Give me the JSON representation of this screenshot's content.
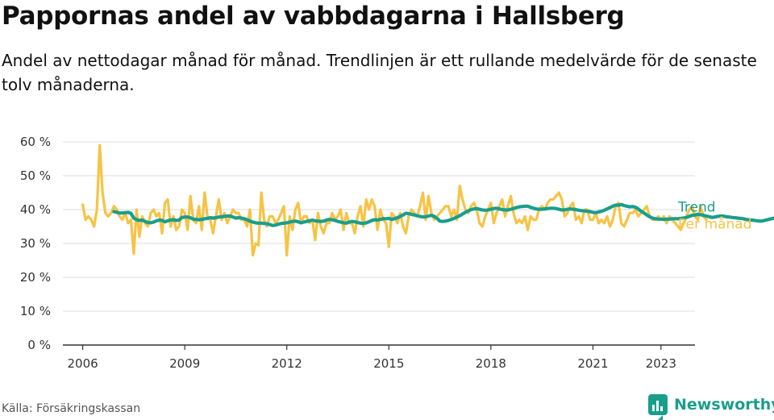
{
  "header": {
    "title": "Pappornas andel av vabbdagarna i Hallsberg",
    "subtitle": "Andel av nettodagar månad för månad. Trendlinjen är ett rullande medelvärde för de senaste tolv månaderna."
  },
  "footer": {
    "source": "Källa: Försäkringskassan",
    "brand": "Newsworthy",
    "brand_icon": "bar-chart-speech-bubble-icon"
  },
  "colors": {
    "monthly": "#f7c344",
    "trend": "#1a9e8c",
    "grid": "#dddddd",
    "axis": "#333333",
    "tick_text": "#333333"
  },
  "chart_data": {
    "type": "line",
    "title": "Pappornas andel av vabbdagarna i Hallsberg",
    "xlabel": "",
    "ylabel": "",
    "ylim": [
      0,
      60
    ],
    "yticks": [
      0,
      10,
      20,
      30,
      40,
      50,
      60
    ],
    "ytick_labels": [
      "0 %",
      "10 %",
      "20 %",
      "30 %",
      "40 %",
      "50 %",
      "60 %"
    ],
    "xlim": [
      "2005-06",
      "2024-01"
    ],
    "xticks": [
      "2006-01",
      "2009-01",
      "2012-01",
      "2015-01",
      "2018-01",
      "2021-01",
      "2023-01"
    ],
    "xtick_labels": [
      "2006",
      "2009",
      "2012",
      "2015",
      "2018",
      "2021",
      "2023"
    ],
    "grid": true,
    "legend": "inline labels at line ends",
    "series": [
      {
        "name": "Per månad",
        "start": "2006-01",
        "frequency": "monthly",
        "values": [
          41.5,
          37,
          38,
          37,
          35,
          40,
          59,
          45,
          39,
          38,
          39,
          41,
          40,
          38,
          37,
          39,
          36,
          37,
          27,
          40,
          32,
          38,
          36,
          35,
          39,
          40,
          38,
          39,
          33,
          42,
          43,
          35,
          38,
          34,
          35,
          40,
          39,
          34,
          44,
          37,
          36,
          41,
          34,
          45,
          38,
          37,
          33,
          38,
          43,
          37,
          39,
          36,
          38,
          40,
          39,
          39,
          37,
          37,
          35,
          40,
          26.5,
          30,
          29.5,
          45,
          37,
          35,
          38,
          38,
          36,
          37,
          39,
          41,
          26.5,
          38,
          34,
          40,
          42,
          36,
          38,
          38,
          36,
          37,
          31,
          39,
          35,
          33,
          36,
          36,
          39,
          37,
          38,
          40,
          34,
          39,
          36,
          36,
          33,
          38,
          41,
          35,
          43,
          40,
          43,
          41,
          34,
          40,
          37,
          36,
          29,
          39,
          38,
          36,
          39,
          35,
          33,
          38,
          40,
          39,
          38,
          41,
          45,
          37,
          44,
          39,
          37,
          38,
          39,
          40,
          41,
          41,
          38,
          40,
          37,
          47,
          43,
          40,
          39,
          41,
          42,
          40,
          36,
          35,
          38,
          40,
          42,
          36,
          39,
          41,
          43,
          38,
          41,
          44,
          39,
          36,
          37,
          36,
          38,
          34,
          38,
          37,
          37,
          40,
          41,
          40,
          42,
          43,
          43,
          44,
          45,
          43,
          38,
          39,
          41,
          42,
          37,
          38,
          36,
          40,
          40,
          37,
          37,
          39,
          36,
          37,
          36,
          38,
          35,
          37,
          41,
          42,
          36,
          35,
          37,
          39,
          39,
          40,
          38,
          39,
          40,
          41,
          38,
          37,
          37,
          38,
          37,
          38,
          36,
          38,
          37,
          36,
          35,
          34,
          36,
          38,
          40,
          41,
          38,
          37,
          41,
          38,
          37
        ]
      },
      {
        "name": "Trend",
        "start": "2006-12",
        "frequency": "monthly",
        "values": [
          39.4,
          39.2,
          39.0,
          39.0,
          39.1,
          39.2,
          38.9,
          37.5,
          37.0,
          36.8,
          36.9,
          36.5,
          36.2,
          36.1,
          36.3,
          36.7,
          36.9,
          36.8,
          36.4,
          36.7,
          36.9,
          37.0,
          36.8,
          36.9,
          37.7,
          37.8,
          37.8,
          37.6,
          37.2,
          37.1,
          37.0,
          37.1,
          37.3,
          37.4,
          37.6,
          37.5,
          37.6,
          37.8,
          37.9,
          38.0,
          38.1,
          38.1,
          37.8,
          37.5,
          37.6,
          37.5,
          37.3,
          37.0,
          36.6,
          36.3,
          36.1,
          36.0,
          36.0,
          35.9,
          35.8,
          35.6,
          35.3,
          35.4,
          35.7,
          35.9,
          36.0,
          36.1,
          36.3,
          36.5,
          36.6,
          36.4,
          36.1,
          36.3,
          36.5,
          36.7,
          36.9,
          36.7,
          36.6,
          36.5,
          36.6,
          36.9,
          37.1,
          37.0,
          36.8,
          36.5,
          36.3,
          36.1,
          36.0,
          36.3,
          36.5,
          36.4,
          36.2,
          36.0,
          35.9,
          36.1,
          36.4,
          36.8,
          37.0,
          36.9,
          37.1,
          37.3,
          37.3,
          37.4,
          37.1,
          37.3,
          37.6,
          38.0,
          38.4,
          38.9,
          38.8,
          38.6,
          38.4,
          38.2,
          38.0,
          37.8,
          37.9,
          38.1,
          38.3,
          38.0,
          37.4,
          36.6,
          36.5,
          36.6,
          36.8,
          37.1,
          37.4,
          37.8,
          38.2,
          38.7,
          39.2,
          39.6,
          40.0,
          40.2,
          40.3,
          40.1,
          39.9,
          39.8,
          39.9,
          40.1,
          40.3,
          40.4,
          40.2,
          40.0,
          39.9,
          39.9,
          40.1,
          40.3,
          40.6,
          40.8,
          40.9,
          41.0,
          41.0,
          40.7,
          40.4,
          40.2,
          40.1,
          40.1,
          40.2,
          40.3,
          40.4,
          40.4,
          40.3,
          40.1,
          39.9,
          39.9,
          40.1,
          40.2,
          40.1,
          40.0,
          39.8,
          39.7,
          39.6,
          39.5,
          39.4,
          39.2,
          39.1,
          39.3,
          39.5,
          39.8,
          40.2,
          40.6,
          41.0,
          41.3,
          41.3,
          41.5,
          41.2,
          41.0,
          40.8,
          40.9,
          40.7,
          40.2,
          39.5,
          39.0,
          38.4,
          37.9,
          37.5,
          37.3,
          37.2,
          37.2,
          37.1,
          37.2,
          37.2,
          37.3,
          37.3,
          37.3,
          37.4,
          37.5,
          37.7,
          38.0,
          38.3,
          38.4,
          38.6,
          38.5,
          38.3,
          38.1,
          37.9,
          37.7,
          37.8,
          38.0,
          38.1,
          38.1,
          37.9,
          37.8,
          37.7,
          37.6,
          37.5,
          37.4,
          37.3,
          37.1,
          37.0,
          36.9,
          36.8,
          36.7,
          36.6,
          36.7,
          36.9,
          37.1,
          37.3,
          37.5,
          37.7,
          37.9,
          38.0,
          38.2,
          38.4,
          38.6,
          38.5,
          38.5
        ]
      }
    ]
  }
}
